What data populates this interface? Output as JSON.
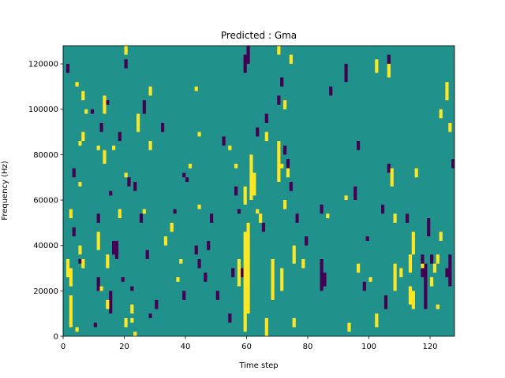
{
  "chart_data": {
    "type": "heatmap",
    "title": "Predicted : Gma",
    "xlabel": "Time step",
    "ylabel": "Frequency (Hz)",
    "xlim": [
      0,
      128
    ],
    "ylim": [
      0,
      128000
    ],
    "xticks": [
      0,
      20,
      40,
      60,
      80,
      100,
      120
    ],
    "yticks": [
      0,
      20000,
      40000,
      60000,
      80000,
      100000,
      120000
    ],
    "colors": {
      "background": "#21918c",
      "high": "#fde725",
      "low": "#440154"
    },
    "background_value": 0,
    "runs_format": "[time_step, freq_start_hz, freq_end_hz]",
    "high_runs": [
      [
        1,
        26000,
        34000
      ],
      [
        2,
        4000,
        18000
      ],
      [
        2,
        22000,
        30000
      ],
      [
        4,
        2000,
        4000
      ],
      [
        5,
        36000,
        40000
      ],
      [
        6,
        104000,
        108000
      ],
      [
        4,
        110000,
        112000
      ],
      [
        7,
        98000,
        100000
      ],
      [
        5,
        84000,
        86000
      ],
      [
        5,
        66000,
        68000
      ],
      [
        2,
        52000,
        56000
      ],
      [
        6,
        30000,
        34000
      ],
      [
        6,
        86000,
        90000
      ],
      [
        11,
        82000,
        84000
      ],
      [
        13,
        76000,
        82000
      ],
      [
        13,
        98000,
        106000
      ],
      [
        11,
        38000,
        46000
      ],
      [
        14,
        30000,
        36000
      ],
      [
        14,
        12000,
        16000
      ],
      [
        12,
        20000,
        22000
      ],
      [
        16,
        82000,
        84000
      ],
      [
        18,
        52000,
        56000
      ],
      [
        20,
        70000,
        72000
      ],
      [
        20,
        4000,
        8000
      ],
      [
        22,
        6000,
        8000
      ],
      [
        23,
        0,
        2000
      ],
      [
        24,
        90000,
        98000
      ],
      [
        26,
        54000,
        56000
      ],
      [
        28,
        82000,
        86000
      ],
      [
        28,
        106000,
        110000
      ],
      [
        22,
        10000,
        14000
      ],
      [
        20,
        124000,
        128000
      ],
      [
        33,
        40000,
        44000
      ],
      [
        35,
        46000,
        50000
      ],
      [
        37,
        24000,
        26000
      ],
      [
        38,
        32000,
        34000
      ],
      [
        41,
        74000,
        76000
      ],
      [
        43,
        108000,
        110000
      ],
      [
        44,
        88000,
        90000
      ],
      [
        44,
        56000,
        58000
      ],
      [
        54,
        82000,
        84000
      ],
      [
        56,
        74000,
        76000
      ],
      [
        57,
        22000,
        34000
      ],
      [
        59,
        2000,
        46000
      ],
      [
        60,
        10000,
        50000
      ],
      [
        59,
        58000,
        66000
      ],
      [
        61,
        60000,
        80000
      ],
      [
        62,
        62000,
        72000
      ],
      [
        63,
        54000,
        56000
      ],
      [
        64,
        50000,
        54000
      ],
      [
        66,
        0,
        8000
      ],
      [
        66,
        86000,
        90000
      ],
      [
        68,
        16000,
        34000
      ],
      [
        70,
        68000,
        86000
      ],
      [
        71,
        74000,
        76000
      ],
      [
        72,
        100000,
        104000
      ],
      [
        72,
        56000,
        60000
      ],
      [
        73,
        70000,
        74000
      ],
      [
        71,
        20000,
        30000
      ],
      [
        70,
        124000,
        128000
      ],
      [
        75,
        32000,
        40000
      ],
      [
        75,
        4000,
        8000
      ],
      [
        74,
        120000,
        124000
      ],
      [
        78,
        30000,
        34000
      ],
      [
        86,
        52000,
        54000
      ],
      [
        92,
        60000,
        62000
      ],
      [
        93,
        2000,
        6000
      ],
      [
        96,
        28000,
        32000
      ],
      [
        100,
        24000,
        26000
      ],
      [
        102,
        4000,
        10000
      ],
      [
        102,
        116000,
        122000
      ],
      [
        106,
        114000,
        120000
      ],
      [
        107,
        66000,
        74000
      ],
      [
        108,
        50000,
        54000
      ],
      [
        108,
        20000,
        32000
      ],
      [
        110,
        26000,
        30000
      ],
      [
        113,
        14000,
        22000
      ],
      [
        113,
        28000,
        36000
      ],
      [
        114,
        12000,
        20000
      ],
      [
        114,
        36000,
        46000
      ],
      [
        115,
        70000,
        74000
      ],
      [
        117,
        30000,
        32000
      ],
      [
        120,
        22000,
        26000
      ],
      [
        121,
        28000,
        32000
      ],
      [
        122,
        32000,
        36000
      ],
      [
        125,
        104000,
        112000
      ],
      [
        126,
        90000,
        94000
      ],
      [
        123,
        96000,
        100000
      ],
      [
        122,
        12000,
        14000
      ],
      [
        123,
        42000,
        46000
      ]
    ],
    "low_runs": [
      [
        1,
        116000,
        120000
      ],
      [
        3,
        70000,
        74000
      ],
      [
        3,
        44000,
        48000
      ],
      [
        5,
        32000,
        34000
      ],
      [
        9,
        98000,
        100000
      ],
      [
        10,
        4000,
        6000
      ],
      [
        11,
        20000,
        26000
      ],
      [
        11,
        50000,
        54000
      ],
      [
        12,
        90000,
        94000
      ],
      [
        14,
        102000,
        104000
      ],
      [
        15,
        10000,
        20000
      ],
      [
        15,
        62000,
        64000
      ],
      [
        16,
        36000,
        42000
      ],
      [
        17,
        36000,
        42000
      ],
      [
        17,
        34000,
        38000
      ],
      [
        18,
        86000,
        90000
      ],
      [
        19,
        24000,
        26000
      ],
      [
        20,
        118000,
        122000
      ],
      [
        21,
        66000,
        70000
      ],
      [
        22,
        20000,
        22000
      ],
      [
        23,
        64000,
        68000
      ],
      [
        25,
        50000,
        54000
      ],
      [
        26,
        98000,
        104000
      ],
      [
        27,
        34000,
        38000
      ],
      [
        28,
        8000,
        10000
      ],
      [
        30,
        12000,
        16000
      ],
      [
        32,
        90000,
        94000
      ],
      [
        36,
        54000,
        56000
      ],
      [
        39,
        16000,
        20000
      ],
      [
        39,
        70000,
        72000
      ],
      [
        40,
        68000,
        70000
      ],
      [
        43,
        36000,
        40000
      ],
      [
        44,
        30000,
        34000
      ],
      [
        46,
        24000,
        28000
      ],
      [
        47,
        38000,
        42000
      ],
      [
        48,
        50000,
        54000
      ],
      [
        50,
        16000,
        20000
      ],
      [
        52,
        84000,
        88000
      ],
      [
        54,
        6000,
        10000
      ],
      [
        55,
        26000,
        30000
      ],
      [
        56,
        62000,
        66000
      ],
      [
        58,
        26000,
        30000
      ],
      [
        57,
        54000,
        56000
      ],
      [
        59,
        116000,
        124000
      ],
      [
        60,
        120000,
        128000
      ],
      [
        63,
        88000,
        92000
      ],
      [
        65,
        46000,
        50000
      ],
      [
        66,
        94000,
        98000
      ],
      [
        70,
        102000,
        106000
      ],
      [
        71,
        110000,
        114000
      ],
      [
        72,
        80000,
        84000
      ],
      [
        73,
        72000,
        78000
      ],
      [
        74,
        64000,
        68000
      ],
      [
        76,
        50000,
        54000
      ],
      [
        79,
        40000,
        44000
      ],
      [
        84,
        20000,
        34000
      ],
      [
        85,
        22000,
        28000
      ],
      [
        84,
        54000,
        58000
      ],
      [
        87,
        106000,
        110000
      ],
      [
        92,
        112000,
        120000
      ],
      [
        95,
        60000,
        66000
      ],
      [
        96,
        82000,
        86000
      ],
      [
        98,
        20000,
        24000
      ],
      [
        99,
        42000,
        44000
      ],
      [
        104,
        54000,
        58000
      ],
      [
        105,
        12000,
        18000
      ],
      [
        106,
        120000,
        124000
      ],
      [
        106,
        72000,
        76000
      ],
      [
        112,
        50000,
        54000
      ],
      [
        117,
        26000,
        36000
      ],
      [
        118,
        12000,
        32000
      ],
      [
        119,
        44000,
        52000
      ],
      [
        120,
        32000,
        36000
      ],
      [
        125,
        26000,
        30000
      ],
      [
        126,
        22000,
        36000
      ],
      [
        127,
        74000,
        78000
      ]
    ]
  }
}
